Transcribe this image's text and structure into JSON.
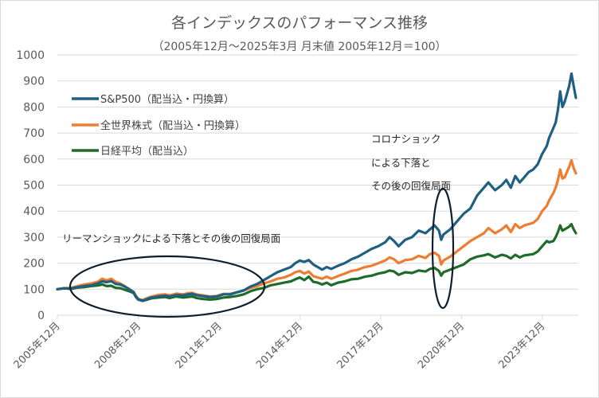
{
  "chart_data": {
    "type": "line",
    "title": "各インデックスのパフォーマンス推移",
    "subtitle": "（2005年12月～2025年3月  月末値  2005年12月＝100）",
    "xlabel": "",
    "ylabel": "",
    "ylim": [
      0,
      1000
    ],
    "yticks": [
      "0",
      "100",
      "200",
      "300",
      "400",
      "500",
      "600",
      "700",
      "800",
      "900",
      "1000"
    ],
    "xlim_months": [
      0,
      231
    ],
    "xticks": [
      {
        "month": 0,
        "label": "2005年12月"
      },
      {
        "month": 36,
        "label": "2008年12月"
      },
      {
        "month": 72,
        "label": "2011年12月"
      },
      {
        "month": 108,
        "label": "2014年12月"
      },
      {
        "month": 144,
        "label": "2017年12月"
      },
      {
        "month": 180,
        "label": "2020年12月"
      },
      {
        "month": 216,
        "label": "2023年12月"
      }
    ],
    "grid": true,
    "legend_position": "top-left",
    "x_note": "months since 2005年12月",
    "series": [
      {
        "name": "S&P500（配当込・円換算）",
        "color": "#1f5f82",
        "points": [
          [
            0,
            100
          ],
          [
            3,
            103
          ],
          [
            6,
            102
          ],
          [
            9,
            108
          ],
          [
            12,
            112
          ],
          [
            15,
            115
          ],
          [
            18,
            122
          ],
          [
            20,
            130
          ],
          [
            22,
            127
          ],
          [
            24,
            131
          ],
          [
            26,
            120
          ],
          [
            28,
            118
          ],
          [
            30,
            110
          ],
          [
            32,
            100
          ],
          [
            34,
            88
          ],
          [
            35,
            72
          ],
          [
            36,
            62
          ],
          [
            38,
            55
          ],
          [
            40,
            62
          ],
          [
            42,
            68
          ],
          [
            45,
            72
          ],
          [
            48,
            75
          ],
          [
            50,
            72
          ],
          [
            53,
            78
          ],
          [
            56,
            76
          ],
          [
            58,
            80
          ],
          [
            60,
            82
          ],
          [
            62,
            77
          ],
          [
            65,
            73
          ],
          [
            68,
            70
          ],
          [
            71,
            72
          ],
          [
            74,
            80
          ],
          [
            77,
            80
          ],
          [
            80,
            88
          ],
          [
            83,
            95
          ],
          [
            86,
            110
          ],
          [
            89,
            120
          ],
          [
            92,
            135
          ],
          [
            95,
            150
          ],
          [
            98,
            165
          ],
          [
            101,
            175
          ],
          [
            104,
            185
          ],
          [
            106,
            200
          ],
          [
            108,
            210
          ],
          [
            110,
            205
          ],
          [
            112,
            212
          ],
          [
            114,
            195
          ],
          [
            116,
            185
          ],
          [
            118,
            175
          ],
          [
            120,
            185
          ],
          [
            122,
            178
          ],
          [
            125,
            190
          ],
          [
            128,
            200
          ],
          [
            131,
            215
          ],
          [
            134,
            225
          ],
          [
            137,
            240
          ],
          [
            140,
            255
          ],
          [
            143,
            265
          ],
          [
            146,
            280
          ],
          [
            148,
            300
          ],
          [
            150,
            285
          ],
          [
            152,
            265
          ],
          [
            155,
            290
          ],
          [
            158,
            300
          ],
          [
            161,
            325
          ],
          [
            164,
            315
          ],
          [
            166,
            330
          ],
          [
            168,
            345
          ],
          [
            170,
            325
          ],
          [
            171,
            290
          ],
          [
            172,
            310
          ],
          [
            175,
            330
          ],
          [
            178,
            360
          ],
          [
            181,
            390
          ],
          [
            184,
            410
          ],
          [
            187,
            460
          ],
          [
            190,
            490
          ],
          [
            192,
            510
          ],
          [
            195,
            480
          ],
          [
            198,
            500
          ],
          [
            200,
            520
          ],
          [
            202,
            490
          ],
          [
            204,
            535
          ],
          [
            206,
            510
          ],
          [
            208,
            530
          ],
          [
            210,
            550
          ],
          [
            212,
            560
          ],
          [
            214,
            580
          ],
          [
            216,
            620
          ],
          [
            218,
            650
          ],
          [
            219,
            680
          ],
          [
            221,
            720
          ],
          [
            222,
            740
          ],
          [
            223,
            790
          ],
          [
            224,
            860
          ],
          [
            225,
            800
          ],
          [
            226,
            820
          ],
          [
            228,
            880
          ],
          [
            229,
            928
          ],
          [
            230,
            880
          ],
          [
            231,
            835
          ]
        ]
      },
      {
        "name": "全世界株式（配当込・円換算）",
        "color": "#ed7d31",
        "points": [
          [
            0,
            100
          ],
          [
            3,
            104
          ],
          [
            6,
            105
          ],
          [
            9,
            112
          ],
          [
            12,
            118
          ],
          [
            15,
            122
          ],
          [
            18,
            128
          ],
          [
            20,
            140
          ],
          [
            22,
            134
          ],
          [
            24,
            140
          ],
          [
            26,
            128
          ],
          [
            28,
            122
          ],
          [
            30,
            112
          ],
          [
            32,
            100
          ],
          [
            34,
            90
          ],
          [
            35,
            75
          ],
          [
            36,
            62
          ],
          [
            38,
            58
          ],
          [
            40,
            66
          ],
          [
            42,
            72
          ],
          [
            45,
            78
          ],
          [
            48,
            80
          ],
          [
            50,
            76
          ],
          [
            53,
            83
          ],
          [
            56,
            80
          ],
          [
            58,
            84
          ],
          [
            60,
            86
          ],
          [
            62,
            80
          ],
          [
            65,
            76
          ],
          [
            68,
            72
          ],
          [
            71,
            74
          ],
          [
            74,
            82
          ],
          [
            77,
            82
          ],
          [
            80,
            88
          ],
          [
            83,
            95
          ],
          [
            86,
            105
          ],
          [
            89,
            112
          ],
          [
            92,
            122
          ],
          [
            95,
            130
          ],
          [
            98,
            140
          ],
          [
            101,
            145
          ],
          [
            104,
            155
          ],
          [
            106,
            165
          ],
          [
            108,
            170
          ],
          [
            110,
            160
          ],
          [
            112,
            168
          ],
          [
            114,
            150
          ],
          [
            116,
            145
          ],
          [
            118,
            140
          ],
          [
            120,
            148
          ],
          [
            122,
            140
          ],
          [
            125,
            150
          ],
          [
            128,
            160
          ],
          [
            131,
            170
          ],
          [
            134,
            175
          ],
          [
            137,
            185
          ],
          [
            140,
            190
          ],
          [
            143,
            200
          ],
          [
            146,
            210
          ],
          [
            148,
            222
          ],
          [
            150,
            215
          ],
          [
            152,
            200
          ],
          [
            155,
            212
          ],
          [
            158,
            215
          ],
          [
            161,
            228
          ],
          [
            164,
            220
          ],
          [
            166,
            235
          ],
          [
            168,
            240
          ],
          [
            170,
            228
          ],
          [
            171,
            195
          ],
          [
            172,
            210
          ],
          [
            175,
            225
          ],
          [
            178,
            245
          ],
          [
            181,
            265
          ],
          [
            184,
            285
          ],
          [
            187,
            300
          ],
          [
            190,
            315
          ],
          [
            192,
            335
          ],
          [
            195,
            315
          ],
          [
            198,
            330
          ],
          [
            200,
            345
          ],
          [
            202,
            320
          ],
          [
            204,
            350
          ],
          [
            206,
            335
          ],
          [
            208,
            345
          ],
          [
            210,
            350
          ],
          [
            212,
            355
          ],
          [
            214,
            370
          ],
          [
            216,
            400
          ],
          [
            218,
            420
          ],
          [
            219,
            440
          ],
          [
            221,
            470
          ],
          [
            222,
            490
          ],
          [
            223,
            520
          ],
          [
            224,
            560
          ],
          [
            225,
            525
          ],
          [
            226,
            530
          ],
          [
            228,
            570
          ],
          [
            229,
            595
          ],
          [
            230,
            565
          ],
          [
            231,
            545
          ]
        ]
      },
      {
        "name": "日経平均（配当込）",
        "color": "#1e6b2a",
        "points": [
          [
            0,
            100
          ],
          [
            3,
            104
          ],
          [
            6,
            101
          ],
          [
            9,
            106
          ],
          [
            12,
            108
          ],
          [
            15,
            112
          ],
          [
            18,
            114
          ],
          [
            20,
            118
          ],
          [
            22,
            112
          ],
          [
            24,
            113
          ],
          [
            26,
            105
          ],
          [
            28,
            104
          ],
          [
            30,
            98
          ],
          [
            32,
            92
          ],
          [
            34,
            85
          ],
          [
            35,
            70
          ],
          [
            36,
            60
          ],
          [
            38,
            55
          ],
          [
            40,
            60
          ],
          [
            42,
            65
          ],
          [
            45,
            68
          ],
          [
            48,
            70
          ],
          [
            50,
            66
          ],
          [
            53,
            72
          ],
          [
            56,
            68
          ],
          [
            58,
            70
          ],
          [
            60,
            72
          ],
          [
            62,
            66
          ],
          [
            65,
            62
          ],
          [
            68,
            60
          ],
          [
            71,
            62
          ],
          [
            74,
            68
          ],
          [
            77,
            70
          ],
          [
            80,
            74
          ],
          [
            83,
            80
          ],
          [
            86,
            92
          ],
          [
            89,
            100
          ],
          [
            92,
            105
          ],
          [
            95,
            115
          ],
          [
            98,
            120
          ],
          [
            101,
            125
          ],
          [
            104,
            130
          ],
          [
            106,
            138
          ],
          [
            108,
            145
          ],
          [
            110,
            135
          ],
          [
            112,
            148
          ],
          [
            114,
            128
          ],
          [
            116,
            125
          ],
          [
            118,
            118
          ],
          [
            120,
            125
          ],
          [
            122,
            115
          ],
          [
            125,
            125
          ],
          [
            128,
            130
          ],
          [
            131,
            138
          ],
          [
            134,
            140
          ],
          [
            137,
            148
          ],
          [
            140,
            152
          ],
          [
            143,
            160
          ],
          [
            146,
            165
          ],
          [
            148,
            172
          ],
          [
            150,
            168
          ],
          [
            152,
            155
          ],
          [
            155,
            165
          ],
          [
            158,
            162
          ],
          [
            161,
            172
          ],
          [
            164,
            168
          ],
          [
            166,
            178
          ],
          [
            168,
            182
          ],
          [
            170,
            170
          ],
          [
            171,
            152
          ],
          [
            172,
            165
          ],
          [
            175,
            175
          ],
          [
            178,
            185
          ],
          [
            181,
            195
          ],
          [
            184,
            215
          ],
          [
            187,
            225
          ],
          [
            190,
            230
          ],
          [
            192,
            235
          ],
          [
            195,
            222
          ],
          [
            198,
            232
          ],
          [
            200,
            228
          ],
          [
            202,
            218
          ],
          [
            204,
            232
          ],
          [
            206,
            222
          ],
          [
            208,
            230
          ],
          [
            210,
            232
          ],
          [
            212,
            235
          ],
          [
            214,
            245
          ],
          [
            216,
            265
          ],
          [
            218,
            285
          ],
          [
            219,
            280
          ],
          [
            221,
            285
          ],
          [
            222,
            300
          ],
          [
            223,
            320
          ],
          [
            224,
            345
          ],
          [
            225,
            325
          ],
          [
            226,
            330
          ],
          [
            228,
            340
          ],
          [
            229,
            350
          ],
          [
            230,
            330
          ],
          [
            231,
            315
          ]
        ]
      }
    ],
    "annotations": [
      {
        "text": "リーマンショックによる下落とその後の回復局面"
      },
      {
        "text_lines": [
          "コロナショック",
          "による下落と",
          "その後の回復局面"
        ]
      }
    ]
  },
  "legend": {
    "items": [
      {
        "label": "S&P500（配当込・円換算）",
        "color": "#1f5f82"
      },
      {
        "label": "全世界株式（配当込・円換算）",
        "color": "#ed7d31"
      },
      {
        "label": "日経平均（配当込）",
        "color": "#1e6b2a"
      }
    ]
  },
  "colors": {
    "grid": "#d9d9d9",
    "axis_text": "#595959",
    "ellipse": "#0d1f2d"
  }
}
